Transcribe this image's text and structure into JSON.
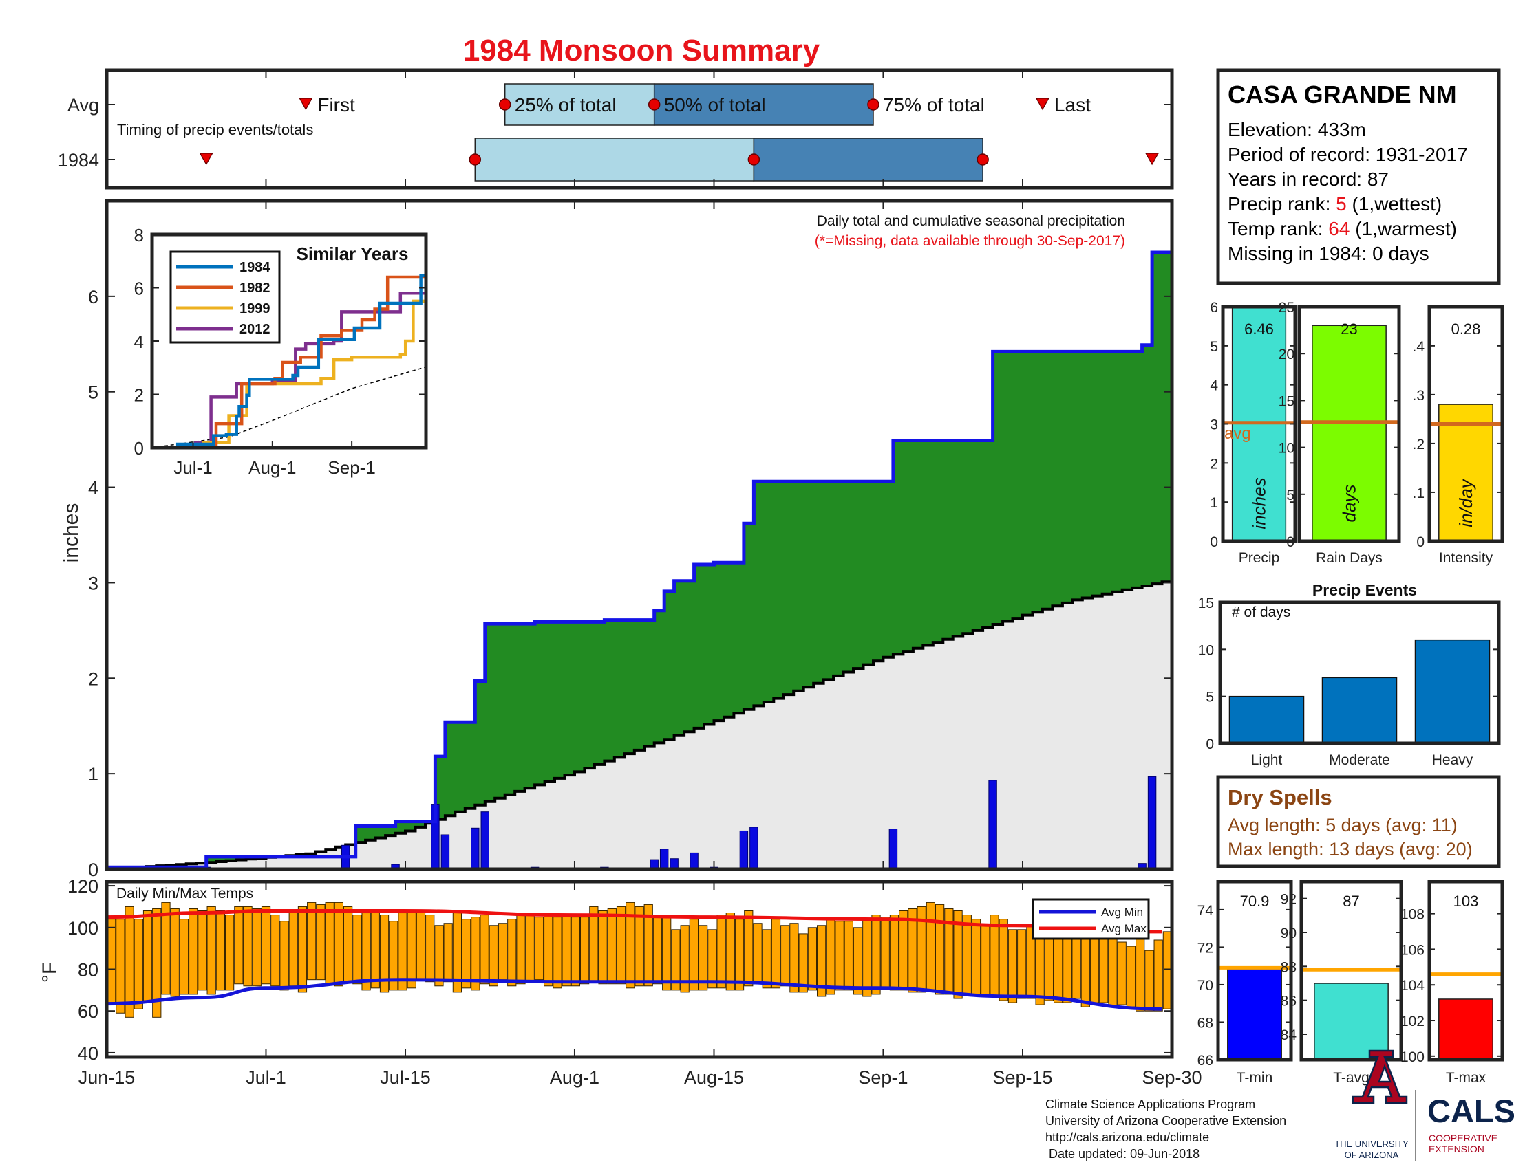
{
  "title": "1984 Monsoon Summary",
  "timing": {
    "row_labels": [
      "Avg",
      "1984"
    ],
    "subtitle": "Timing of precip events/totals",
    "labels": {
      "first": "First",
      "p25": "25% of total",
      "p50": "50% of total",
      "p75": "75% of total",
      "last": "Last"
    },
    "avg": {
      "first": "2017-07-05",
      "p25": "2017-07-25",
      "p50": "2017-08-09",
      "p75": "2017-08-31",
      "last": "2017-09-17"
    },
    "year": {
      "first": "2017-06-25",
      "p25": "2017-07-22",
      "p50": "2017-08-19",
      "p75": "2017-09-11",
      "last": "2017-09-28"
    }
  },
  "station": {
    "name": "CASA GRANDE NM",
    "lines": [
      {
        "label": "Elevation: ",
        "value": "433m",
        "suffix": "",
        "highlight": false
      },
      {
        "label": "Period of record: ",
        "value": "1931-2017",
        "suffix": "",
        "highlight": false
      },
      {
        "label": "Years in record: ",
        "value": "87",
        "suffix": "",
        "highlight": false
      },
      {
        "label": "Precip rank: ",
        "value": "5",
        "suffix": " (1,wettest)",
        "highlight": true
      },
      {
        "label": "Temp rank: ",
        "value": "64",
        "suffix": " (1,warmest)",
        "highlight": true
      },
      {
        "label": "Missing in 1984: ",
        "value": "0 days",
        "suffix": "",
        "highlight": false
      }
    ]
  },
  "colors": {
    "title": "#e8141b",
    "cum_line": "#1414e6",
    "cum_fill": "#228b22",
    "avg_fill": "#e9e9e9",
    "daily_bar": "#0a0ae0",
    "temp_bar": "#ffa500",
    "avg_min": "#1414d8",
    "avg_max": "#ee1111",
    "dry_spell": "#8b4513",
    "box_light": "#add8e6",
    "box_dark": "#4682b4",
    "marker": "#e60000"
  },
  "chart_data": [
    {
      "id": "cumulative_precip",
      "type": "area",
      "title": "Daily total and cumulative seasonal precipitation",
      "note": "(*=Missing, data available through 30-Sep-2017)",
      "ylabel": "inches",
      "ylim": [
        0,
        7
      ],
      "yticks": [
        0,
        1,
        2,
        3,
        4,
        5,
        6
      ],
      "xlim": [
        "2017-06-15",
        "2017-09-30"
      ],
      "xticks": [
        {
          "date": "2017-06-15",
          "label": "Jun-15"
        },
        {
          "date": "2017-07-01",
          "label": "Jul-1"
        },
        {
          "date": "2017-07-15",
          "label": "Jul-15"
        },
        {
          "date": "2017-08-01",
          "label": "Aug-1"
        },
        {
          "date": "2017-08-15",
          "label": "Aug-15"
        },
        {
          "date": "2017-09-01",
          "label": "Sep-1"
        },
        {
          "date": "2017-09-15",
          "label": "Sep-15"
        },
        {
          "date": "2017-09-30",
          "label": "Sep-30"
        }
      ],
      "series": [
        {
          "id": "cum_1984",
          "style": "step",
          "x": [
            "2017-06-15",
            "2017-06-25",
            "2017-07-09",
            "2017-07-10",
            "2017-07-14",
            "2017-07-18",
            "2017-07-19",
            "2017-07-22",
            "2017-07-23",
            "2017-07-24",
            "2017-07-28",
            "2017-08-04",
            "2017-08-09",
            "2017-08-10",
            "2017-08-11",
            "2017-08-13",
            "2017-08-15",
            "2017-08-18",
            "2017-08-19",
            "2017-09-02",
            "2017-09-12",
            "2017-09-27",
            "2017-09-28",
            "2017-09-30"
          ],
          "y": [
            0.02,
            0.13,
            0.13,
            0.45,
            0.5,
            1.18,
            1.54,
            1.97,
            2.57,
            2.57,
            2.59,
            2.61,
            2.71,
            2.91,
            3.02,
            3.19,
            3.21,
            3.62,
            4.06,
            4.49,
            5.42,
            5.49,
            6.46,
            6.46
          ]
        },
        {
          "id": "avg_cum",
          "style": "smooth",
          "x": [
            "2017-06-15",
            "2017-06-25",
            "2017-07-05",
            "2017-07-15",
            "2017-07-20",
            "2017-07-25",
            "2017-08-01",
            "2017-08-10",
            "2017-08-20",
            "2017-09-01",
            "2017-09-10",
            "2017-09-20",
            "2017-09-30"
          ],
          "y": [
            0.0,
            0.07,
            0.16,
            0.4,
            0.6,
            0.78,
            1.02,
            1.36,
            1.75,
            2.22,
            2.5,
            2.82,
            3.03
          ]
        }
      ],
      "daily": {
        "x": [
          "2017-06-25",
          "2017-07-09",
          "2017-07-14",
          "2017-07-18",
          "2017-07-19",
          "2017-07-22",
          "2017-07-23",
          "2017-07-28",
          "2017-08-04",
          "2017-08-09",
          "2017-08-10",
          "2017-08-11",
          "2017-08-13",
          "2017-08-15",
          "2017-08-18",
          "2017-08-19",
          "2017-09-02",
          "2017-09-12",
          "2017-09-27",
          "2017-09-28"
        ],
        "y": [
          0.02,
          0.25,
          0.05,
          0.68,
          0.36,
          0.43,
          0.6,
          0.02,
          0.02,
          0.1,
          0.21,
          0.11,
          0.17,
          0.02,
          0.4,
          0.44,
          0.42,
          0.93,
          0.06,
          0.97
        ]
      }
    },
    {
      "id": "similar_years",
      "type": "line",
      "title": "Similar Years",
      "ylim": [
        0,
        8
      ],
      "yticks": [
        0,
        2,
        4,
        6,
        8
      ],
      "xlim": [
        "2017-06-15",
        "2017-09-30"
      ],
      "xticks": [
        {
          "date": "2017-07-01",
          "label": "Jul-1"
        },
        {
          "date": "2017-08-01",
          "label": "Aug-1"
        },
        {
          "date": "2017-09-01",
          "label": "Sep-1"
        }
      ],
      "series": [
        {
          "name": "1984",
          "color": "#0072bd",
          "x": [
            "2017-06-15",
            "2017-06-25",
            "2017-07-09",
            "2017-07-14",
            "2017-07-18",
            "2017-07-19",
            "2017-07-22",
            "2017-07-23",
            "2017-08-09",
            "2017-08-11",
            "2017-08-19",
            "2017-09-02",
            "2017-09-12",
            "2017-09-28",
            "2017-09-30"
          ],
          "y": [
            0.02,
            0.13,
            0.45,
            0.5,
            1.18,
            1.54,
            1.97,
            2.57,
            2.71,
            3.02,
            4.06,
            4.49,
            5.42,
            6.46,
            6.46
          ]
        },
        {
          "name": "1982",
          "color": "#d95319",
          "x": [
            "2017-06-15",
            "2017-07-04",
            "2017-07-10",
            "2017-07-20",
            "2017-08-02",
            "2017-08-05",
            "2017-08-12",
            "2017-08-20",
            "2017-08-28",
            "2017-09-05",
            "2017-09-10",
            "2017-09-15",
            "2017-09-30"
          ],
          "y": [
            0.0,
            0.1,
            0.9,
            2.4,
            2.6,
            3.2,
            3.4,
            4.2,
            4.4,
            4.8,
            5.2,
            6.4,
            6.4
          ]
        },
        {
          "name": "1999",
          "color": "#edb120",
          "x": [
            "2017-06-15",
            "2017-07-05",
            "2017-07-15",
            "2017-07-22",
            "2017-08-05",
            "2017-08-20",
            "2017-08-25",
            "2017-09-01",
            "2017-09-20",
            "2017-09-22",
            "2017-09-25",
            "2017-09-30"
          ],
          "y": [
            0.0,
            0.2,
            1.2,
            2.4,
            2.4,
            2.6,
            3.3,
            3.4,
            3.5,
            4.0,
            5.5,
            6.2
          ]
        },
        {
          "name": "2012",
          "color": "#7e2f8e",
          "x": [
            "2017-06-15",
            "2017-07-02",
            "2017-07-08",
            "2017-07-18",
            "2017-08-01",
            "2017-08-10",
            "2017-08-14",
            "2017-08-25",
            "2017-08-28",
            "2017-09-18",
            "2017-09-20",
            "2017-09-30"
          ],
          "y": [
            0.0,
            0.2,
            1.9,
            2.4,
            2.5,
            3.7,
            3.9,
            4.0,
            5.1,
            5.1,
            5.8,
            5.8
          ]
        }
      ],
      "avg_line": {
        "x": [
          "2017-06-15",
          "2017-07-15",
          "2017-08-01",
          "2017-09-01",
          "2017-09-30"
        ],
        "y": [
          0.0,
          0.4,
          1.02,
          2.22,
          3.03
        ]
      }
    },
    {
      "id": "season_totals",
      "type": "bar",
      "panels": [
        {
          "category": "Precip",
          "value": 6.46,
          "value_label": "6.46",
          "unit": "inches",
          "avg": 3.03,
          "avg_label": "avg",
          "ylim": [
            0,
            6
          ],
          "yticks": [
            0,
            1,
            2,
            3,
            4,
            5,
            6
          ],
          "color": "#40e0d0"
        },
        {
          "category": "Rain Days",
          "value": 23,
          "value_label": "23",
          "unit": "days",
          "avg": 12.7,
          "ylim": [
            0,
            25
          ],
          "yticks": [
            0,
            5,
            10,
            15,
            20,
            25
          ],
          "color": "#7cfc00"
        },
        {
          "category": "Intensity",
          "value": 0.28,
          "value_label": "0.28",
          "unit": "in/day",
          "avg": 0.24,
          "ylim": [
            0,
            0.48
          ],
          "yticks": [
            0,
            0.1,
            0.2,
            0.3,
            0.4
          ],
          "color": "#ffd700"
        }
      ]
    },
    {
      "id": "precip_events",
      "type": "bar",
      "title": "Precip Events",
      "ylabel": "# of days",
      "ylim": [
        0,
        15
      ],
      "yticks": [
        0,
        5,
        10,
        15
      ],
      "categories": [
        "Light",
        "Moderate",
        "Heavy"
      ],
      "values": [
        5,
        7,
        11
      ],
      "color": "#0072bd"
    },
    {
      "id": "daily_temps",
      "type": "bar",
      "title": "Daily Min/Max Temps",
      "ylabel": "°F",
      "ylim": [
        38,
        122
      ],
      "yticks": [
        40,
        60,
        80,
        100,
        120
      ],
      "xlim": [
        "2017-06-15",
        "2017-09-30"
      ],
      "start": "2017-06-15",
      "tmax": [
        104,
        104,
        110,
        104,
        108,
        109,
        112,
        109,
        104,
        109,
        108,
        110,
        108,
        106,
        110,
        110,
        109,
        110,
        106,
        103,
        108,
        110,
        112,
        111,
        112,
        112,
        110,
        106,
        107,
        108,
        106,
        103,
        107,
        108,
        108,
        106,
        101,
        102,
        107,
        104,
        105,
        106,
        101,
        102,
        104,
        106,
        106,
        105,
        106,
        105,
        106,
        105,
        105,
        110,
        108,
        109,
        110,
        112,
        110,
        111,
        106,
        106,
        99,
        101,
        104,
        101,
        99,
        106,
        107,
        104,
        108,
        102,
        99,
        104,
        101,
        102,
        97,
        100,
        101,
        104,
        103,
        103,
        100,
        104,
        106,
        105,
        106,
        108,
        109,
        110,
        112,
        111,
        109,
        108,
        106,
        104,
        101,
        106,
        104,
        99,
        99,
        101,
        100,
        101,
        100,
        100,
        101,
        100,
        98,
        99,
        96,
        93,
        91,
        96,
        89,
        94,
        98
      ],
      "tmin": [
        63,
        59,
        57,
        61,
        65,
        57,
        68,
        67,
        68,
        68,
        70,
        68,
        70,
        70,
        73,
        72,
        72,
        73,
        72,
        70,
        72,
        69,
        75,
        75,
        73,
        72,
        74,
        73,
        70,
        71,
        69,
        70,
        70,
        71,
        75,
        74,
        72,
        74,
        69,
        71,
        70,
        73,
        72,
        75,
        72,
        73,
        74,
        75,
        72,
        71,
        72,
        72,
        73,
        74,
        73,
        73,
        73,
        71,
        72,
        72,
        73,
        70,
        70,
        69,
        70,
        70,
        71,
        71,
        70,
        70,
        72,
        73,
        71,
        71,
        72,
        69,
        69,
        70,
        67,
        68,
        70,
        70,
        68,
        67,
        68,
        71,
        70,
        70,
        69,
        69,
        70,
        68,
        68,
        66,
        68,
        68,
        67,
        67,
        65,
        64,
        66,
        66,
        63,
        65,
        64,
        64,
        66,
        62,
        64,
        64,
        62,
        63,
        62,
        60,
        60,
        60,
        61
      ],
      "avg_min": {
        "x": [
          "2017-06-15",
          "2017-06-25",
          "2017-07-01",
          "2017-07-15",
          "2017-08-01",
          "2017-08-15",
          "2017-09-01",
          "2017-09-15",
          "2017-09-30"
        ],
        "y": [
          63.5,
          66.5,
          71.0,
          75.0,
          74.0,
          74.0,
          71.0,
          67.0,
          61.0
        ]
      },
      "avg_max": {
        "x": [
          "2017-06-15",
          "2017-06-25",
          "2017-07-01",
          "2017-07-15",
          "2017-08-01",
          "2017-08-15",
          "2017-09-01",
          "2017-09-15",
          "2017-09-30"
        ],
        "y": [
          105.0,
          107.0,
          108.0,
          108.0,
          106.0,
          105.0,
          104.0,
          101.0,
          98.0
        ]
      },
      "legend": [
        "Avg Min",
        "Avg Max"
      ]
    },
    {
      "id": "temp_summary",
      "type": "bar",
      "panels": [
        {
          "category": "T-min",
          "value": 70.9,
          "value_label": "70.9",
          "avg": 70.9,
          "ylim": [
            66,
            75.5
          ],
          "yticks": [
            66,
            68,
            70,
            72,
            74
          ],
          "color": "#0000ff"
        },
        {
          "category": "T-avg",
          "value": 87.0,
          "value_label": "87",
          "avg": 87.8,
          "ylim": [
            82.5,
            93
          ],
          "yticks": [
            84,
            86,
            88,
            90,
            92
          ],
          "color": "#40e0d0"
        },
        {
          "category": "T-max",
          "value": 103.2,
          "value_label": "103",
          "avg": 104.6,
          "ylim": [
            99.8,
            109.8
          ],
          "yticks": [
            100,
            102,
            104,
            106,
            108
          ],
          "color": "#ff0000"
        }
      ]
    }
  ],
  "dry_spells": {
    "title": "Dry Spells",
    "avg_length": "Avg length: 5 days (avg: 11)",
    "max_length": "Max length: 13 days (avg: 20)"
  },
  "footer": {
    "lines": [
      "Climate Science Applications Program",
      "University of Arizona Cooperative Extension",
      "http://cals.arizona.edu/climate",
      " Date updated: 09-Jun-2018"
    ]
  },
  "logos": {
    "ua_line1": "THE UNIVERSITY",
    "ua_line2": "OF ARIZONA",
    "cals": "CALS",
    "cals_sub1": "COOPERATIVE",
    "cals_sub2": "EXTENSION"
  }
}
